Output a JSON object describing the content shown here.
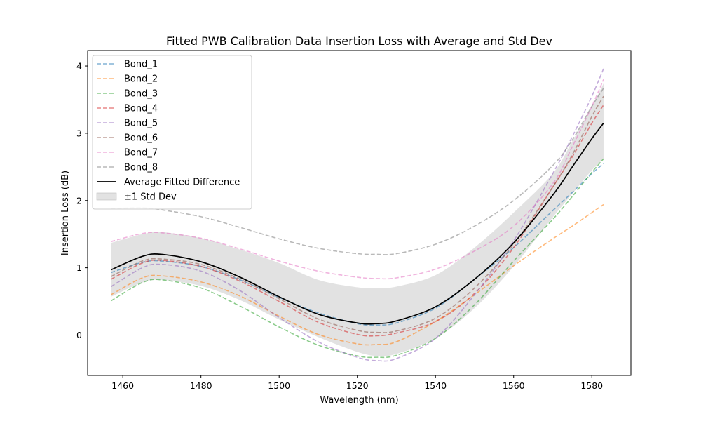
{
  "chart_data": {
    "type": "line",
    "title": "Fitted PWB Calibration Data Insertion Loss with Average and Std Dev",
    "xlabel": "Wavelength (nm)",
    "ylabel": "Insertion Loss (dB)",
    "xlim": [
      1451,
      1590
    ],
    "ylim": [
      -0.6,
      4.23
    ],
    "xticks": [
      1460,
      1480,
      1500,
      1520,
      1540,
      1560,
      1580
    ],
    "yticks": [
      0,
      1,
      2,
      3,
      4
    ],
    "legend_position": "top-left",
    "x": [
      1457,
      1465,
      1470,
      1480,
      1490,
      1500,
      1510,
      1520,
      1525,
      1530,
      1540,
      1550,
      1560,
      1570,
      1575,
      1580,
      1583
    ],
    "series": [
      {
        "name": "Bond_1",
        "color": "#1f77b4",
        "style": "dashed",
        "values": [
          0.93,
          1.08,
          1.1,
          1.02,
          0.82,
          0.56,
          0.33,
          0.17,
          0.15,
          0.18,
          0.4,
          0.83,
          1.3,
          1.85,
          2.12,
          2.4,
          2.55
        ]
      },
      {
        "name": "Bond_2",
        "color": "#ff7f0e",
        "style": "dashed",
        "values": [
          0.6,
          0.85,
          0.88,
          0.79,
          0.58,
          0.28,
          0.01,
          -0.13,
          -0.14,
          -0.1,
          0.2,
          0.6,
          1.03,
          1.43,
          1.62,
          1.82,
          1.94
        ]
      },
      {
        "name": "Bond_3",
        "color": "#2ca02c",
        "style": "dashed",
        "values": [
          0.51,
          0.78,
          0.82,
          0.7,
          0.43,
          0.12,
          -0.15,
          -0.31,
          -0.33,
          -0.3,
          -0.05,
          0.45,
          1.1,
          1.72,
          2.06,
          2.42,
          2.62
        ]
      },
      {
        "name": "Bond_4",
        "color": "#d62728",
        "style": "dashed",
        "values": [
          0.83,
          1.07,
          1.11,
          1.02,
          0.8,
          0.5,
          0.19,
          0.01,
          -0.01,
          0.03,
          0.2,
          0.62,
          1.3,
          2.2,
          2.65,
          3.15,
          3.42
        ]
      },
      {
        "name": "Bond_5",
        "color": "#9467bd",
        "style": "dashed",
        "values": [
          0.72,
          1.0,
          1.05,
          0.95,
          0.66,
          0.26,
          -0.1,
          -0.33,
          -0.38,
          -0.35,
          -0.05,
          0.6,
          1.4,
          2.4,
          2.95,
          3.55,
          3.96
        ]
      },
      {
        "name": "Bond_6",
        "color": "#8c564b",
        "style": "dashed",
        "values": [
          0.87,
          1.1,
          1.13,
          1.05,
          0.83,
          0.54,
          0.24,
          0.07,
          0.04,
          0.06,
          0.25,
          0.7,
          1.35,
          2.2,
          2.68,
          3.25,
          3.55
        ]
      },
      {
        "name": "Bond_7",
        "color": "#e377c2",
        "style": "dashed",
        "values": [
          1.39,
          1.51,
          1.52,
          1.44,
          1.28,
          1.1,
          0.95,
          0.86,
          0.84,
          0.85,
          0.98,
          1.25,
          1.62,
          2.25,
          2.8,
          3.4,
          3.8
        ]
      },
      {
        "name": "Bond_8",
        "color": "#7f7f7f",
        "style": "dashed",
        "values": [
          1.88,
          1.89,
          1.86,
          1.76,
          1.6,
          1.43,
          1.29,
          1.21,
          1.2,
          1.21,
          1.35,
          1.62,
          2.0,
          2.52,
          2.9,
          3.4,
          3.67
        ]
      },
      {
        "name": "Average Fitted Difference",
        "color": "#000000",
        "style": "solid",
        "values": [
          0.97,
          1.17,
          1.2,
          1.09,
          0.86,
          0.57,
          0.31,
          0.18,
          0.17,
          0.21,
          0.42,
          0.83,
          1.37,
          2.08,
          2.5,
          2.92,
          3.15
        ]
      }
    ],
    "band": {
      "name": "±1 Std Dev",
      "color": "#d3d3d3",
      "lower": [
        0.57,
        0.78,
        0.82,
        0.73,
        0.52,
        0.23,
        -0.03,
        -0.25,
        -0.31,
        -0.28,
        -0.05,
        0.4,
        1.02,
        1.75,
        2.1,
        2.45,
        2.62
      ],
      "upper": [
        1.37,
        1.5,
        1.53,
        1.44,
        1.27,
        1.07,
        0.82,
        0.71,
        0.7,
        0.72,
        0.89,
        1.3,
        1.82,
        2.4,
        2.88,
        3.4,
        3.74
      ]
    }
  }
}
